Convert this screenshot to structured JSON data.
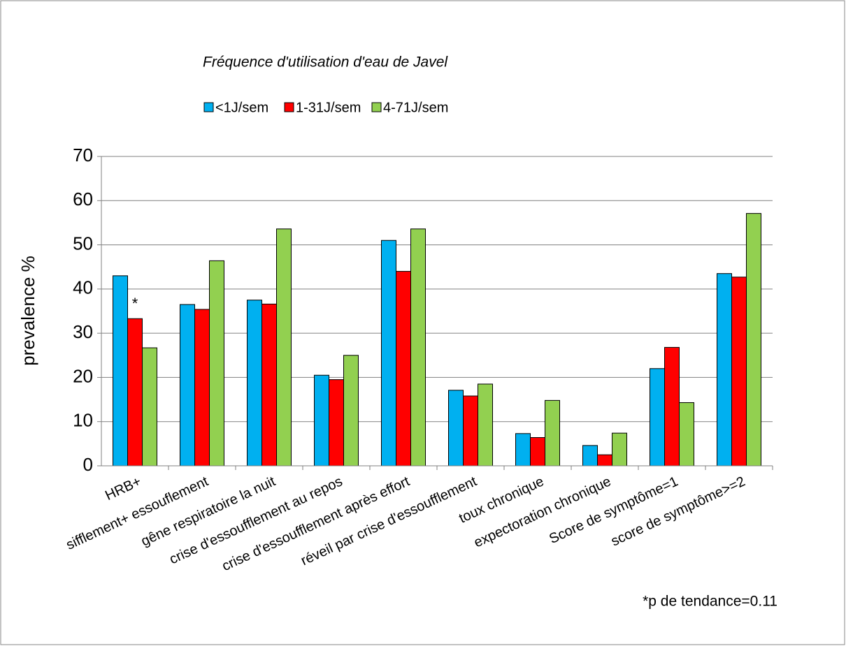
{
  "chart_data": {
    "type": "bar",
    "title": "Fréquence d'utilisation d'eau de Javel",
    "y_label": "prevalence %",
    "categories": [
      "HRB+",
      "sifflement+ essouflement",
      "gêne respiratoire la nuit",
      "crise d'essoufflement au repos",
      "crise d'essoufflement après effort",
      "réveil par crise  d'essoufflement",
      "toux chronique",
      "expectoration chronique",
      "Score de symptôme=1",
      "score de symptôme>=2"
    ],
    "series": [
      {
        "name": "<1J/sem",
        "color": "#00b0f0",
        "values": [
          43,
          36.5,
          37.5,
          20.5,
          51,
          17.1,
          7.3,
          4.6,
          22,
          43.5
        ]
      },
      {
        "name": "1-31J/sem",
        "color": "#ff0000",
        "values": [
          33.3,
          35.4,
          36.6,
          19.5,
          44,
          15.8,
          6.4,
          2.5,
          26.8,
          42.7
        ]
      },
      {
        "name": "4-71J/sem",
        "color": "#92d050",
        "values": [
          26.7,
          46.4,
          53.6,
          25,
          53.6,
          18.5,
          14.8,
          7.4,
          14.3,
          57.1
        ]
      }
    ],
    "annotations": [
      "*",
      "*p de tendance=0.11"
    ],
    "ylim": [
      0,
      70
    ],
    "yticks": [
      0,
      10,
      20,
      30,
      40,
      50,
      60,
      70
    ],
    "grid": true,
    "legend": "top"
  }
}
